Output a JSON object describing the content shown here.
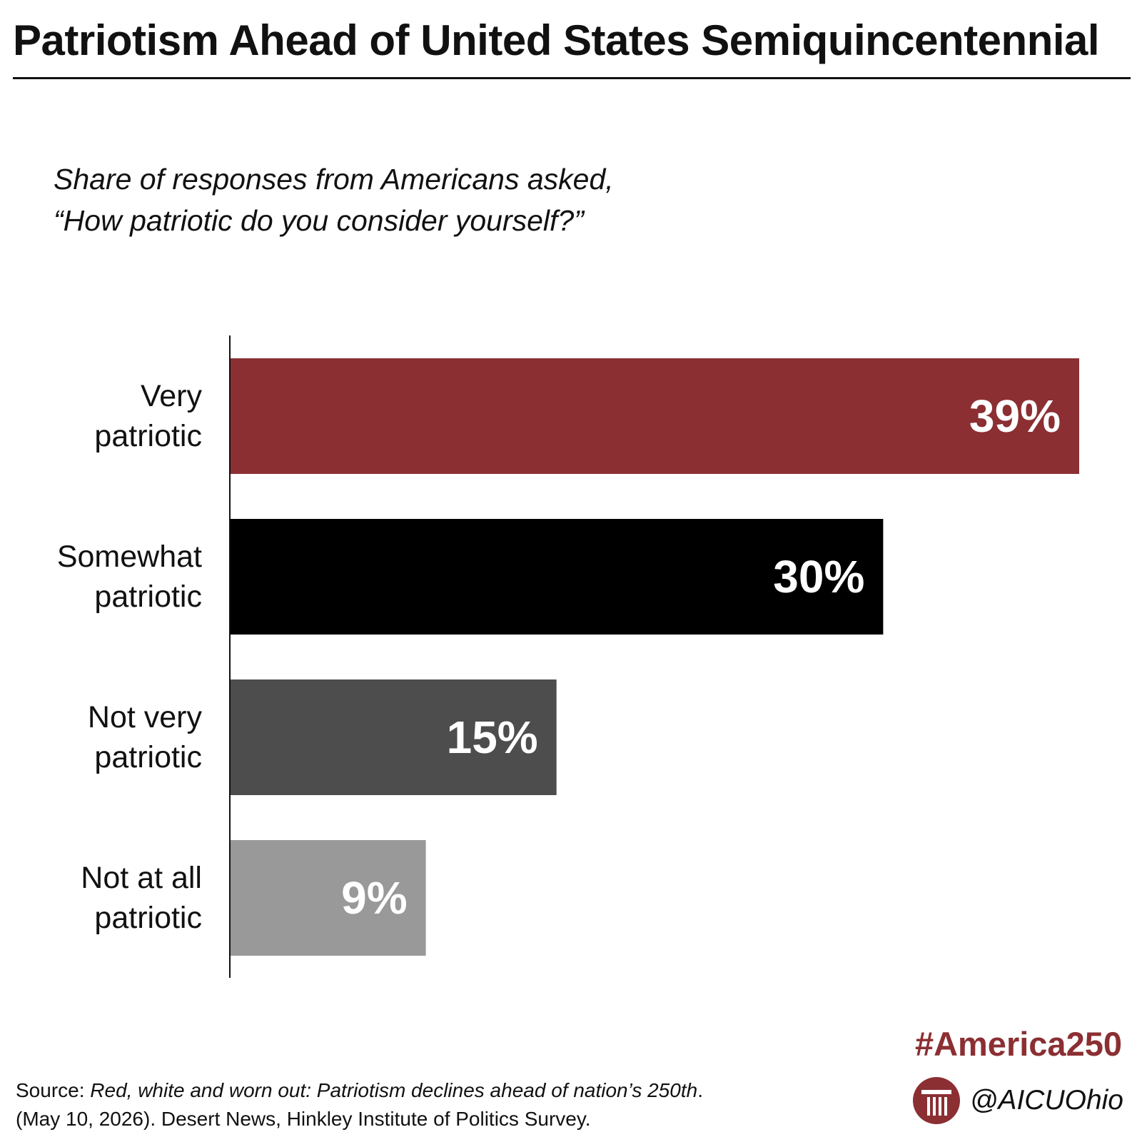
{
  "header": {
    "title": "Patriotism Ahead of United States Semiquincentennial"
  },
  "subtitle": {
    "line1": "Share of responses from Americans asked,",
    "line2": "“How patriotic do you consider yourself?”"
  },
  "chart_data": {
    "type": "bar",
    "orientation": "horizontal",
    "title": "Patriotism Ahead of United States Semiquincentennial",
    "subtitle": "Share of responses from Americans asked, “How patriotic do you consider yourself?”",
    "categories": [
      [
        "Very",
        "patriotic"
      ],
      [
        "Somewhat",
        "patriotic"
      ],
      [
        "Not very",
        "patriotic"
      ],
      [
        "Not at all",
        "patriotic"
      ]
    ],
    "values": [
      39,
      30,
      15,
      9
    ],
    "value_labels": [
      "39%",
      "30%",
      "15%",
      "9%"
    ],
    "colors": [
      "#8b2f33",
      "#000000",
      "#4d4d4d",
      "#999999"
    ],
    "value_label_color": "#ffffff",
    "xlim": [
      0,
      39
    ],
    "grid": false,
    "legend": "none"
  },
  "footer": {
    "hashtag": "#America250",
    "source_label": "Source: ",
    "source_title": "Red, white and worn out: Patriotism declines ahead of nation’s 250th",
    "source_title_end": ".",
    "source_line2": "(May 10, 2026). Desert News, Hinkley Institute of Politics Survey.",
    "handle": "@AICUOhio",
    "logo_icon": "aicu-column-logo-icon",
    "brand_color": "#8b2f33"
  }
}
